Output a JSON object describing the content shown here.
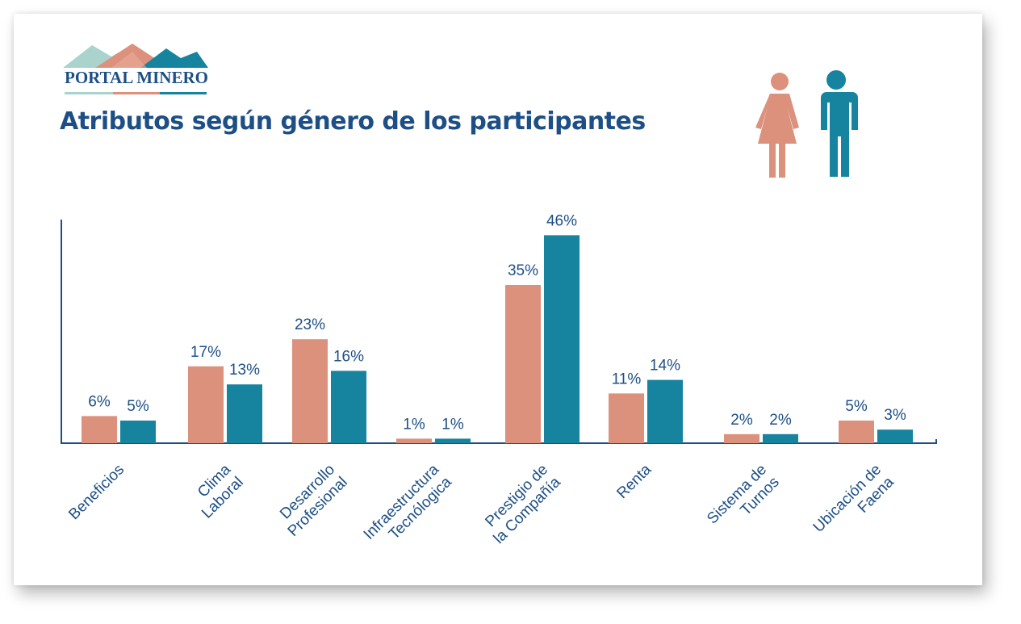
{
  "logo": {
    "text": "PORTAL MINERO"
  },
  "title": "Atributos según género de los participantes",
  "colors": {
    "female": "#dc917c",
    "male": "#17849f",
    "text": "#1d4f86",
    "axis": "#1d4f86"
  },
  "icons": [
    "female-figure-icon",
    "male-figure-icon"
  ],
  "chart_data": {
    "type": "bar",
    "categories": [
      [
        "Beneficios"
      ],
      [
        "Clima",
        "Laboral"
      ],
      [
        "Desarrollo",
        "Profesional"
      ],
      [
        "Infraestructura",
        "Tecnólogica"
      ],
      [
        "Prestigio de",
        "la Compañía"
      ],
      [
        "Renta"
      ],
      [
        "Sistema de",
        "Turnos"
      ],
      [
        "Ubicación de",
        "Faena"
      ]
    ],
    "series": [
      {
        "color": "#dc917c",
        "values": [
          6,
          17,
          23,
          1,
          35,
          11,
          2,
          5
        ],
        "labels": [
          "6%",
          "17%",
          "23%",
          "1%",
          "35%",
          "11%",
          "2%",
          "5%"
        ]
      },
      {
        "color": "#17849f",
        "values": [
          5,
          13,
          16,
          1,
          46,
          14,
          2,
          3
        ],
        "labels": [
          "5%",
          "13%",
          "16%",
          "1%",
          "46%",
          "14%",
          "2%",
          "3%"
        ]
      }
    ],
    "ylim": [
      0,
      50
    ],
    "grid": false,
    "legend": "none"
  }
}
